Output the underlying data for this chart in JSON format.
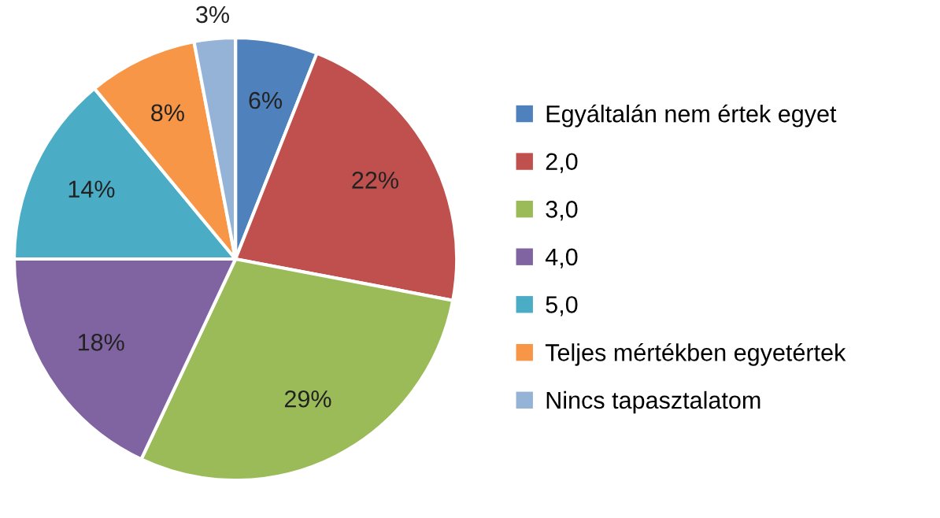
{
  "chart_data": {
    "type": "pie",
    "categories": [
      "Egyáltalán nem értek egyet",
      "2,0",
      "3,0",
      "4,0",
      "5,0",
      "Teljes mértékben egyetértek",
      "Nincs tapasztalatom"
    ],
    "values": [
      6,
      22,
      29,
      18,
      14,
      8,
      3
    ],
    "colors": [
      "#4f81bd",
      "#c0504d",
      "#9bbb59",
      "#8064a2",
      "#4bacc6",
      "#f79646",
      "#95b3d7"
    ],
    "value_labels": [
      "6%",
      "22%",
      "29%",
      "18%",
      "14%",
      "8%",
      "3%"
    ],
    "legend": "right"
  }
}
